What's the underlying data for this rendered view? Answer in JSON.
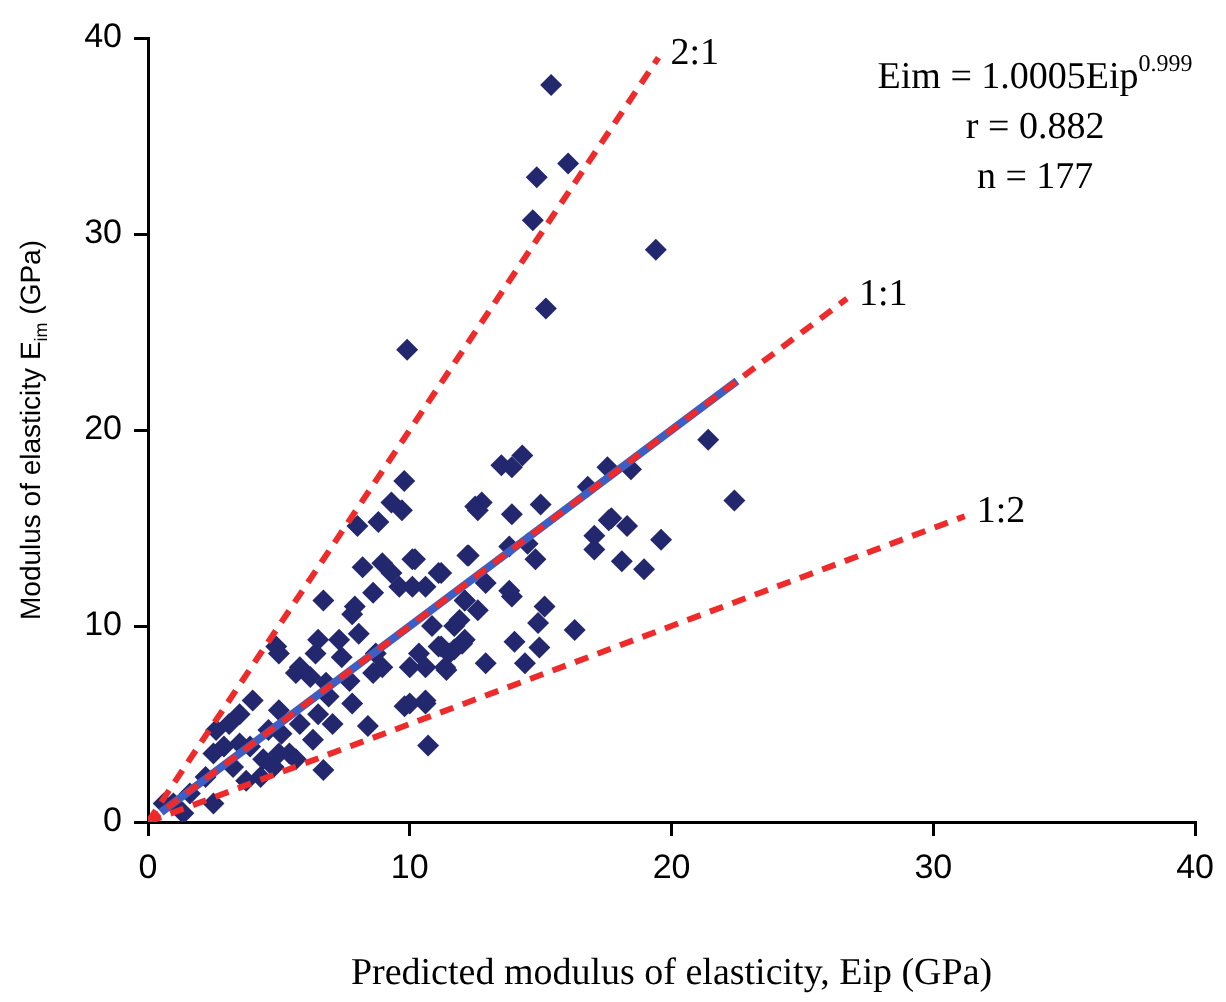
{
  "chart_data": {
    "type": "scatter",
    "xlabel": "Predicted modulus of elasticity, Eip (GPa)",
    "ylabel": "Modulus of elasticity E$_{im}$ (GPa)",
    "xlim": [
      0,
      40
    ],
    "ylim": [
      0,
      40
    ],
    "xticks": [
      0,
      10,
      20,
      30,
      40
    ],
    "yticks": [
      0,
      10,
      20,
      30,
      40
    ],
    "grid": false,
    "legend": false,
    "annotations": [
      "Eim = 1.0005Eip$^{0.999}$",
      "r = 0.882",
      "n = 177",
      {
        "text": "2:1",
        "x": 19.5,
        "y": 39
      },
      {
        "text": "1:1",
        "x": 26.7,
        "y": 26.7
      },
      {
        "text": "1:2",
        "x": 31.2,
        "y": 15.6
      }
    ],
    "series": [
      {
        "type": "scatter",
        "marker": "diamond",
        "color": "#23286e",
        "x": [
          9.79,
          9.3,
          9.7,
          8.0,
          8.8,
          8.2,
          8.95,
          9.3,
          10.1,
          9.6,
          8.6,
          10.1,
          7.9,
          7.8,
          6.7,
          6.5,
          5.8,
          5.65,
          6.4,
          7.3,
          8.05,
          7.4,
          8.7,
          8.95,
          8.6,
          4.9,
          5.0,
          6.2,
          6.8,
          7.7,
          6.9,
          7.8,
          6.5,
          7.05,
          5.8,
          8.4,
          6.3,
          5.0,
          5.1,
          5.4,
          4.6,
          4.0,
          3.5,
          3.1,
          2.6,
          2.9,
          2.5,
          3.5,
          3.9,
          4.4,
          4.3,
          3.75,
          3.25,
          2.2,
          2.5,
          1.6,
          1.35,
          0.97,
          0.6,
          5.0,
          4.8,
          5.65,
          6.7,
          10.7,
          9.8,
          10.6,
          10.0,
          11.4,
          11.5,
          11.2,
          10.85,
          12.1,
          11.9,
          12.1,
          11.2,
          12.2,
          12.5,
          10.6,
          21.4,
          22.4,
          19.6,
          18.95,
          18.1,
          18.3,
          17.6,
          17.7,
          17.05,
          17.05,
          18.45,
          17.55,
          16.8,
          16.3,
          15.0,
          13.9,
          12.75,
          12.6,
          13.5,
          13.9,
          14.3,
          12.25,
          10.2,
          13.8,
          14.5,
          14.8,
          11.1,
          12.9,
          12.1,
          12.6,
          13.8,
          13.9,
          15.15,
          14.9,
          11.7,
          12.0,
          11.7,
          11.1,
          10.35,
          10.6,
          11.35,
          12.9,
          14.0,
          14.95,
          14.4,
          10.0,
          10.6,
          15.4,
          16.05,
          14.85,
          14.7,
          19.4,
          15.2,
          9.9
        ],
        "values": [
          17.4,
          16.3,
          15.9,
          15.1,
          15.3,
          13.0,
          13.2,
          12.7,
          13.4,
          12.0,
          11.7,
          12.0,
          11.0,
          10.6,
          11.3,
          9.3,
          7.9,
          7.6,
          8.6,
          9.3,
          9.6,
          8.4,
          8.6,
          7.9,
          7.6,
          8.95,
          8.6,
          7.4,
          7.1,
          7.2,
          6.4,
          6.05,
          5.5,
          5.0,
          5.0,
          4.9,
          4.2,
          5.7,
          4.5,
          3.5,
          4.7,
          6.2,
          5.5,
          5.0,
          4.7,
          3.85,
          3.5,
          4.0,
          3.85,
          3.2,
          2.3,
          2.1,
          2.8,
          2.3,
          0.95,
          1.46,
          0.45,
          0.95,
          0.95,
          3.5,
          2.8,
          3.2,
          2.65,
          3.9,
          5.9,
          6.05,
          7.9,
          7.75,
          8.6,
          8.95,
          10.0,
          9.3,
          10.3,
          11.3,
          12.7,
          13.6,
          16.1,
          12.0,
          19.5,
          16.4,
          14.4,
          12.9,
          13.3,
          15.1,
          15.4,
          15.5,
          14.6,
          13.9,
          18.0,
          18.1,
          17.1,
          9.8,
          16.2,
          15.7,
          16.3,
          15.9,
          18.2,
          18.1,
          18.7,
          13.6,
          13.4,
          14.05,
          14.2,
          13.4,
          12.7,
          12.2,
          11.3,
          10.8,
          11.8,
          11.5,
          11.0,
          10.15,
          10.0,
          9.1,
          8.8,
          8.95,
          8.6,
          7.9,
          7.9,
          8.1,
          9.2,
          8.9,
          8.1,
          6.05,
          6.2,
          37.6,
          33.6,
          32.9,
          30.7,
          29.2,
          26.2,
          24.1
        ]
      },
      {
        "type": "line",
        "line_style": "solid",
        "color": "#3d5fc4",
        "x": [
          0.5,
          22.5
        ],
        "values": [
          0.5,
          22.5
        ]
      },
      {
        "type": "line",
        "line_style": "dashed",
        "color": "#ee2a2a",
        "x": [
          0,
          19.5
        ],
        "values": [
          0,
          39
        ]
      },
      {
        "type": "line",
        "line_style": "dashed",
        "color": "#ee2a2a",
        "x": [
          0,
          26.7
        ],
        "values": [
          0,
          26.7
        ]
      },
      {
        "type": "line",
        "line_style": "dashed",
        "color": "#ee2a2a",
        "x": [
          0,
          31.2
        ],
        "values": [
          0,
          15.6
        ]
      }
    ]
  }
}
